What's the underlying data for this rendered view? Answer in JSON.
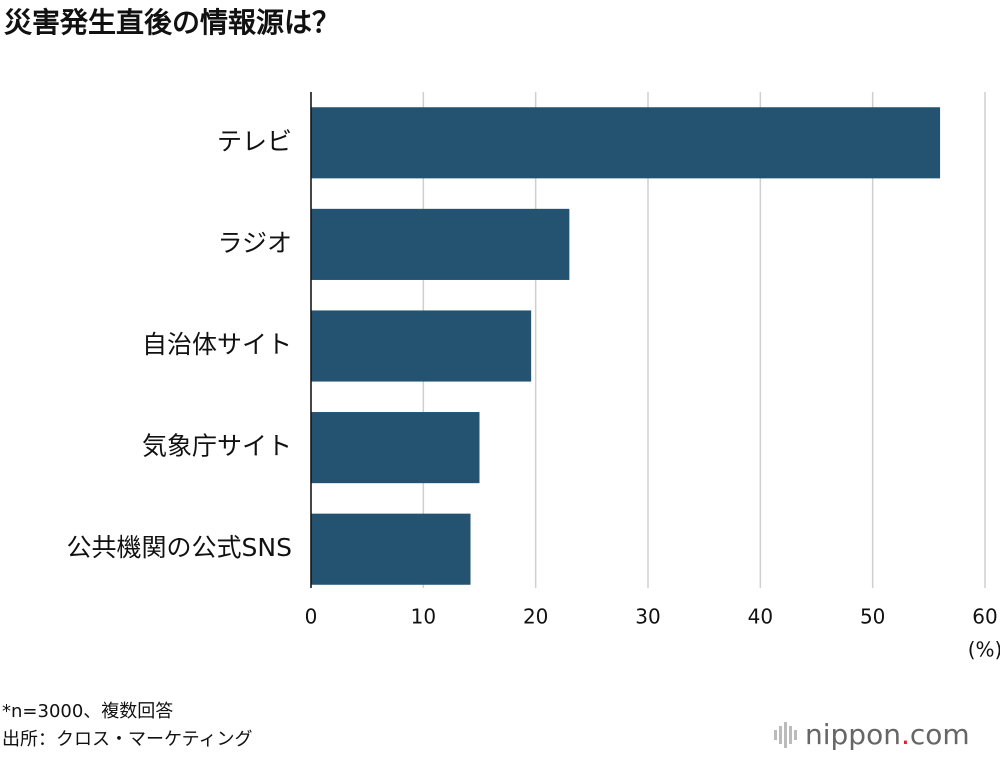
{
  "chart_data": {
    "type": "bar",
    "orientation": "horizontal",
    "title": "災害発生直後の情報源は？",
    "categories": [
      "テレビ",
      "ラジオ",
      "自治体サイト",
      "気象庁サイト",
      "公共機関の公式SNS"
    ],
    "values": [
      56,
      23,
      19.6,
      15,
      14.2
    ],
    "color": "#245372",
    "xlim": [
      0,
      60
    ],
    "xticks": [
      0,
      10,
      20,
      30,
      40,
      50,
      60
    ],
    "x_label": "(%)",
    "grid": true
  },
  "footer": {
    "note": "*n=3000、複数回答",
    "source": "出所：クロス・マーケティング",
    "logo": [
      "nippon",
      ".",
      "com"
    ]
  }
}
